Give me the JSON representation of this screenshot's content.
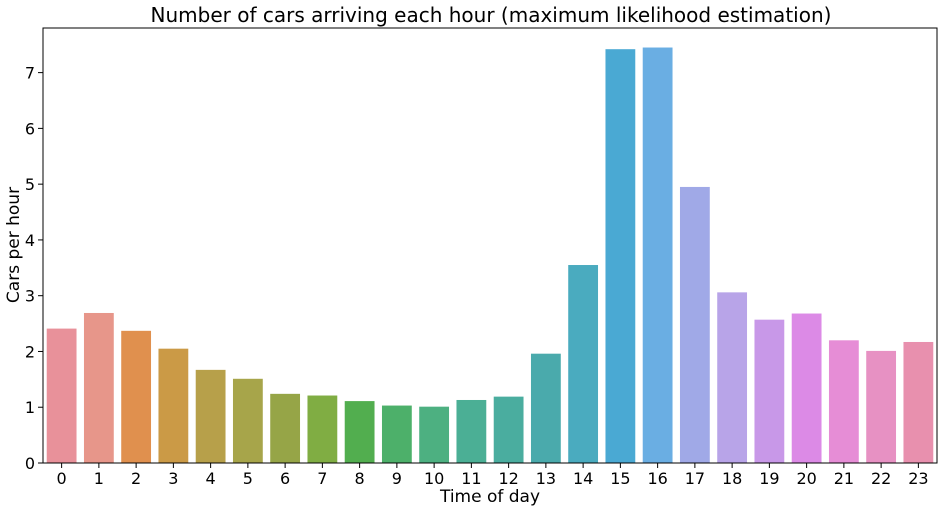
{
  "chart_data": {
    "type": "bar",
    "title": "Number of cars arriving each hour (maximum likelihood estimation)",
    "xlabel": "Time of day",
    "ylabel": "Cars per hour",
    "ylim": [
      0,
      7.8
    ],
    "yticks": [
      0,
      1,
      2,
      3,
      4,
      5,
      6,
      7
    ],
    "grid": false,
    "categories": [
      "0",
      "1",
      "2",
      "3",
      "4",
      "5",
      "6",
      "7",
      "8",
      "9",
      "10",
      "11",
      "12",
      "13",
      "14",
      "15",
      "16",
      "17",
      "18",
      "19",
      "20",
      "21",
      "22",
      "23"
    ],
    "values": [
      2.41,
      2.69,
      2.37,
      2.05,
      1.67,
      1.51,
      1.24,
      1.21,
      1.11,
      1.03,
      1.01,
      1.13,
      1.19,
      1.96,
      3.55,
      7.42,
      7.45,
      4.95,
      3.06,
      2.57,
      2.68,
      2.2,
      2.01,
      2.17
    ],
    "colors": [
      "#e8919a",
      "#e7968a",
      "#e0904e",
      "#cb9a46",
      "#b7a04a",
      "#a7a54a",
      "#96a547",
      "#80ad43",
      "#52ae4f",
      "#4db06a",
      "#4db081",
      "#4baf95",
      "#4aad9f",
      "#4aaaac",
      "#4aabbf",
      "#4aa9d3",
      "#6aaee3",
      "#a0a9e7",
      "#b8a4e8",
      "#c898e8",
      "#dc8ae6",
      "#e68dd6",
      "#e791c3",
      "#e890ae"
    ]
  }
}
